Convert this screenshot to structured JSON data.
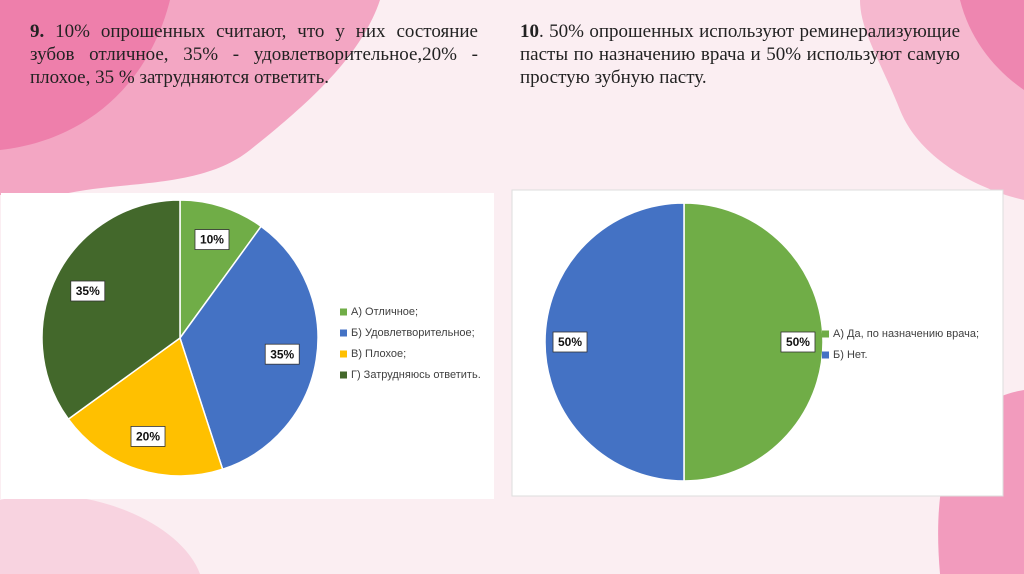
{
  "slide": {
    "texts": [
      {
        "number": "9.",
        "text": " 10% опрошенных считают, что у них состояние зубов отличное, 35% - удовлетворительное,20% - плохое, 35 % затрудняются ответить."
      },
      {
        "number": "10",
        "text": ". 50% опрошенных используют реминерализующие пасты по назначению врача и 50% используют самую простую зубную пасту."
      }
    ]
  },
  "chart_data": [
    {
      "type": "pie",
      "categories": [
        "А) Отличное;",
        "Б) Удовлетворительное;",
        "В) Плохое;",
        "Г) Затрудняюсь ответить."
      ],
      "values": [
        10,
        35,
        20,
        35
      ],
      "value_labels": [
        "10%",
        "35%",
        "20%",
        "35%"
      ],
      "colors": [
        "#70ad47",
        "#4472c4",
        "#ffc000",
        "#43682b"
      ],
      "legend": "right"
    },
    {
      "type": "pie",
      "categories": [
        "А) Да, по назначению врача;",
        "Б) Нет."
      ],
      "values": [
        50,
        50
      ],
      "value_labels": [
        "50%",
        "50%"
      ],
      "colors": [
        "#70ad47",
        "#4472c4"
      ],
      "legend": "right"
    }
  ]
}
